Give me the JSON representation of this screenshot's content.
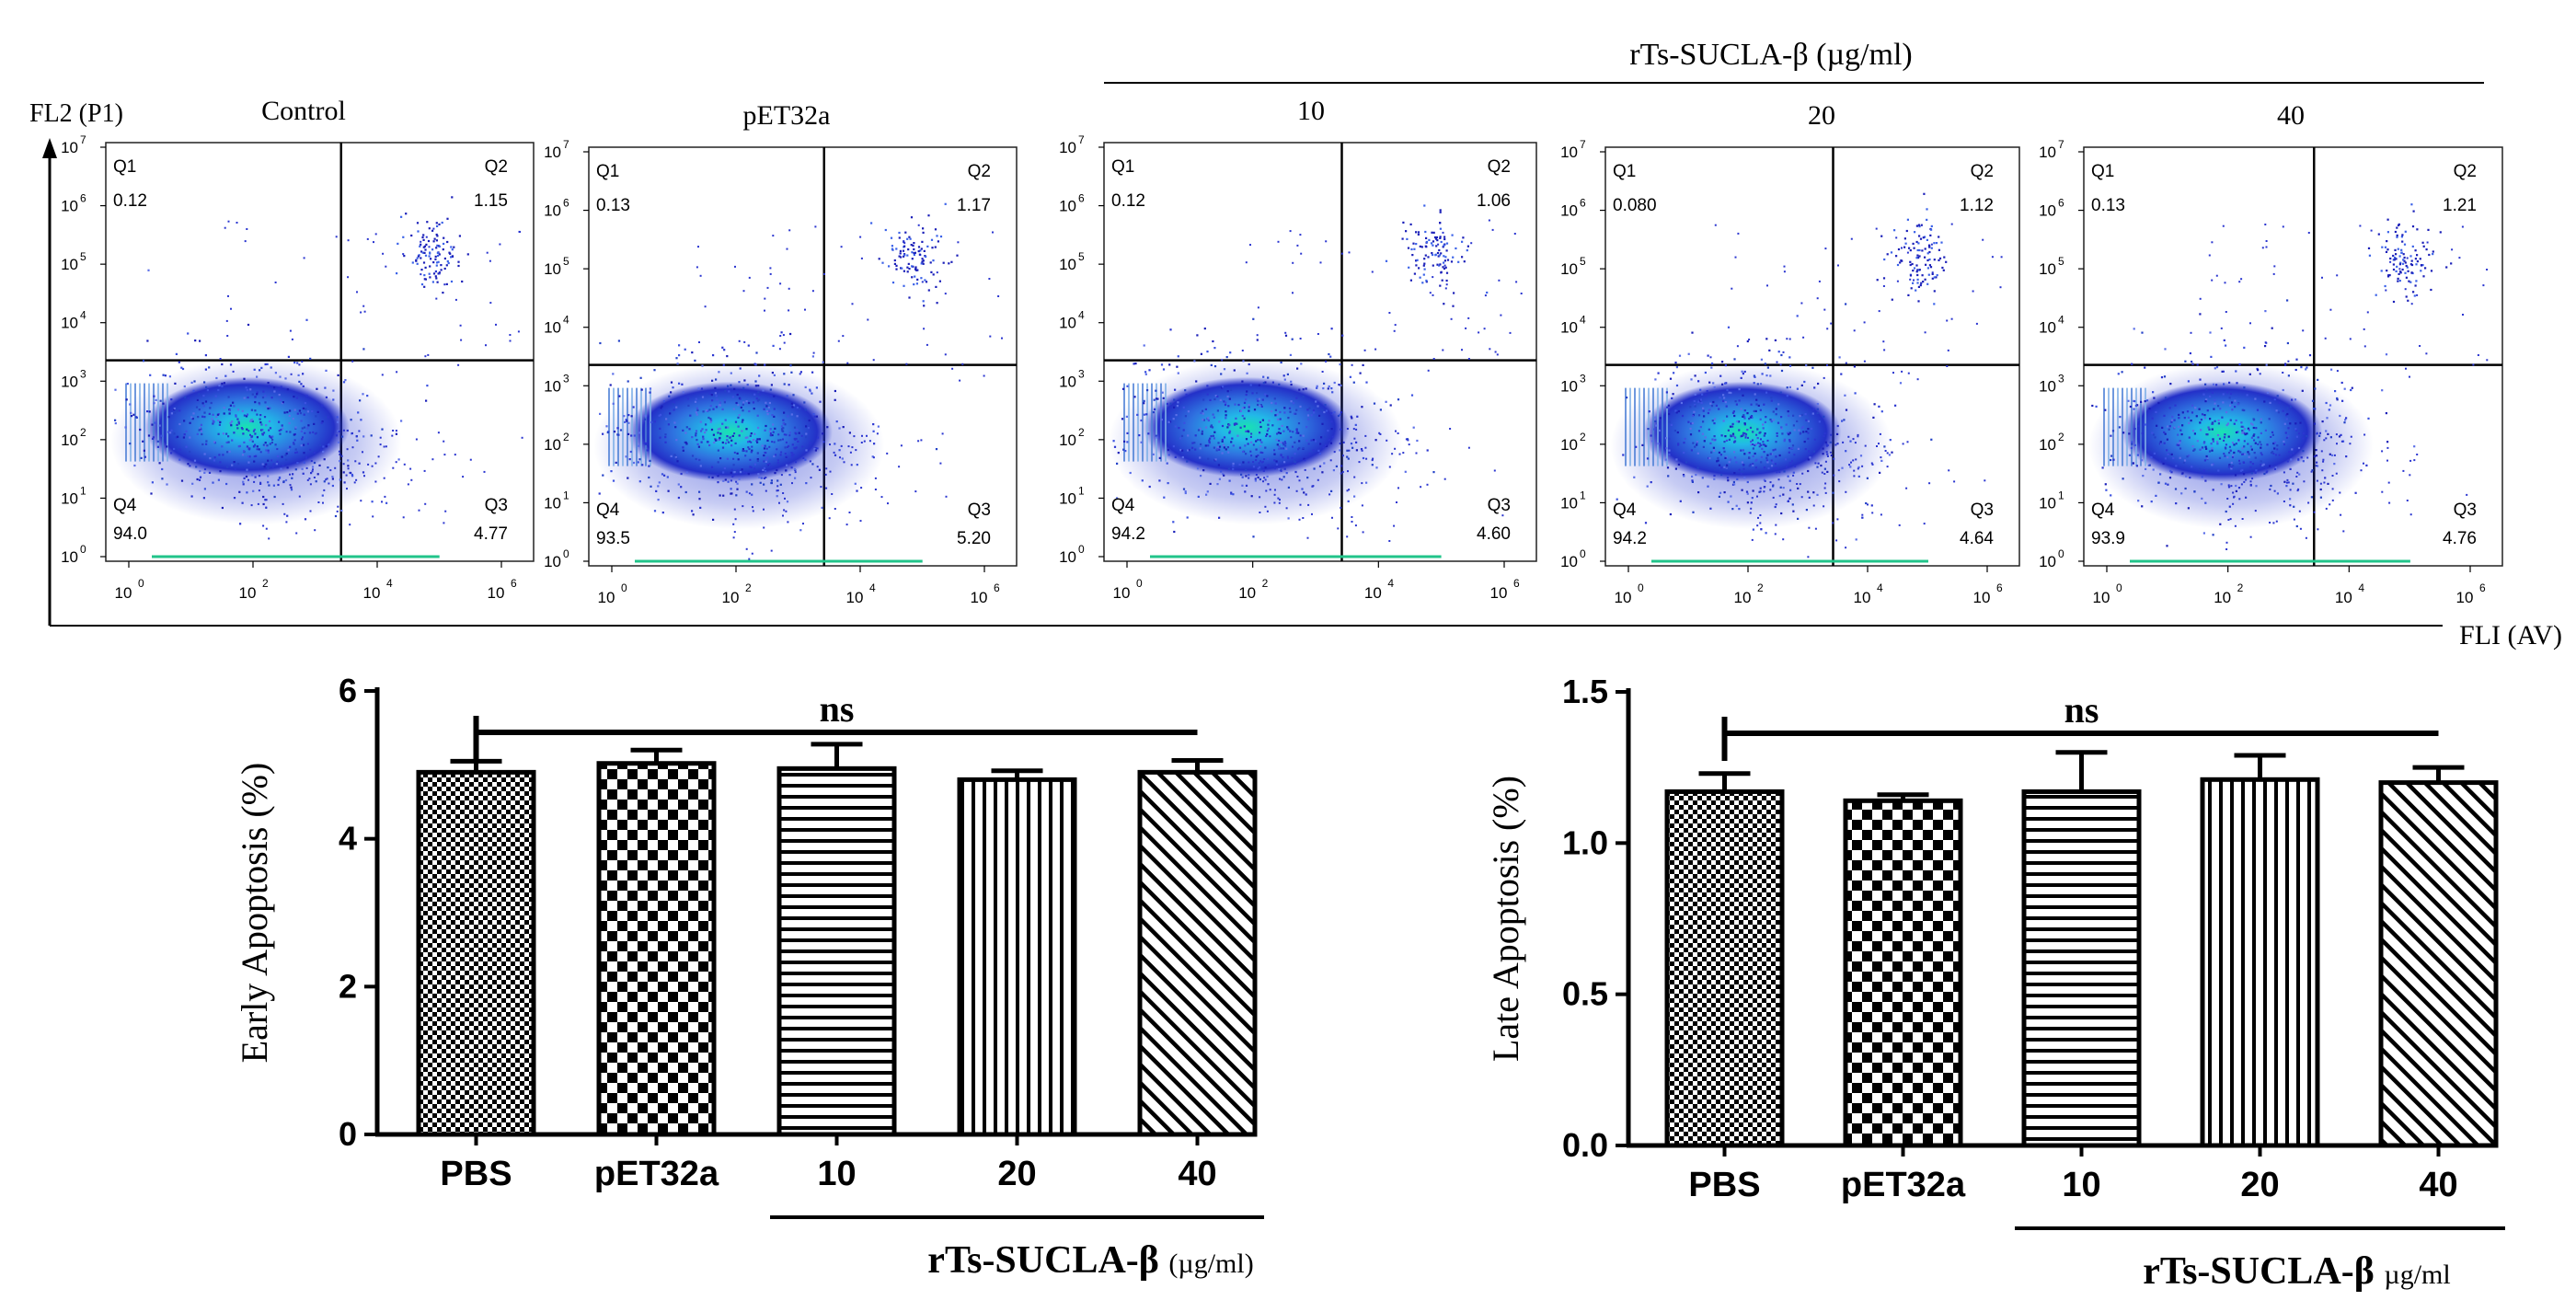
{
  "figure": {
    "top_axis_y_label": "FL2 (P1)",
    "top_axis_x_label": "FLI (AV)",
    "treatment_group_label": "rTs-SUCLA-β (µg/ml)"
  },
  "chart_data": [
    {
      "type": "scatter",
      "subtype": "flow-cytometry-quadrant-plots",
      "x_axis_label": "FLI (AV)",
      "y_axis_label": "FL2 (P1)",
      "x_ticks": [
        "10",
        "10",
        "10",
        "10"
      ],
      "x_tick_exponents": [
        "0",
        "2",
        "4",
        "6"
      ],
      "y_ticks": [
        "10",
        "10",
        "10",
        "10",
        "10",
        "10",
        "10",
        "10"
      ],
      "y_tick_exponents": [
        "0",
        "1",
        "2",
        "3",
        "4",
        "5",
        "6",
        "7"
      ],
      "quadrant_names": [
        "Q1",
        "Q2",
        "Q3",
        "Q4"
      ],
      "panels": [
        {
          "title": "Control",
          "Q1": "0.12",
          "Q2": "1.15",
          "Q3": "4.77",
          "Q4": "94.0"
        },
        {
          "title": "pET32a",
          "Q1": "0.13",
          "Q2": "1.17",
          "Q3": "5.20",
          "Q4": "93.5"
        },
        {
          "title": "10",
          "Q1": "0.12",
          "Q2": "1.06",
          "Q3": "4.60",
          "Q4": "94.2"
        },
        {
          "title": "20",
          "Q1": "0.080",
          "Q2": "1.12",
          "Q3": "4.64",
          "Q4": "94.2"
        },
        {
          "title": "40",
          "Q1": "0.13",
          "Q2": "1.21",
          "Q3": "4.76",
          "Q4": "93.9"
        }
      ]
    },
    {
      "type": "bar",
      "title": "",
      "ylabel": "Early Apoptosis (%)",
      "xlabel": "",
      "categories": [
        "PBS",
        "pET32a",
        "10",
        "20",
        "40"
      ],
      "values": [
        4.9,
        5.02,
        4.95,
        4.8,
        4.9
      ],
      "errors": [
        0.15,
        0.18,
        0.33,
        0.12,
        0.16
      ],
      "patterns": [
        "checker-fine",
        "checker-coarse",
        "horizontal",
        "vertical",
        "diagonal"
      ],
      "ylim": [
        0,
        6
      ],
      "yticks": [
        "0",
        "2",
        "4",
        "6"
      ],
      "ytick_values": [
        0,
        2,
        4,
        6
      ],
      "significance": "ns",
      "group_label": "rTs-SUCLA-β",
      "group_unit": "(µg/ml)"
    },
    {
      "type": "bar",
      "title": "",
      "ylabel": "Late Apoptosis (%)",
      "xlabel": "",
      "categories": [
        "PBS",
        "pET32a",
        "10",
        "20",
        "40"
      ],
      "values": [
        1.17,
        1.14,
        1.17,
        1.21,
        1.2
      ],
      "errors": [
        0.06,
        0.02,
        0.13,
        0.08,
        0.05
      ],
      "patterns": [
        "checker-fine",
        "checker-coarse",
        "horizontal",
        "vertical",
        "diagonal"
      ],
      "ylim": [
        0,
        1.5
      ],
      "yticks": [
        "0.0",
        "0.5",
        "1.0",
        "1.5"
      ],
      "ytick_values": [
        0,
        0.5,
        1.0,
        1.5
      ],
      "significance": "ns",
      "group_label": "rTs-SUCLA-β",
      "group_unit": "µg/ml"
    }
  ]
}
